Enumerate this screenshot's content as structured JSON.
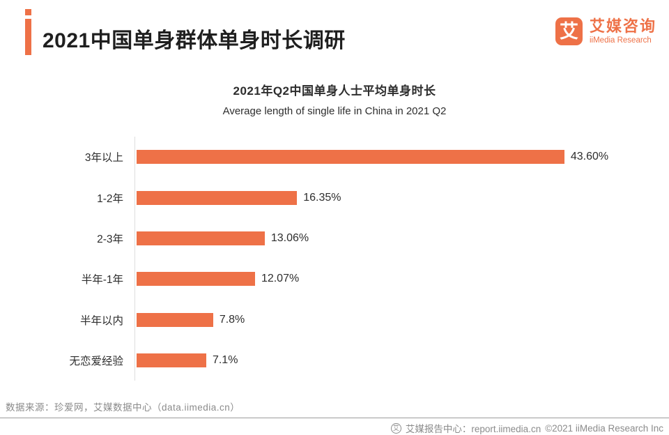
{
  "header": {
    "title": "2021中国单身群体单身时长调研",
    "logo": {
      "glyph": "艾",
      "name_cn": "艾媒咨询",
      "name_en": "iiMedia Research"
    }
  },
  "chart_data": {
    "type": "bar",
    "orientation": "horizontal",
    "title": "2021年Q2中国单身人士平均单身时长",
    "subtitle": "Average length of single life in China in 2021 Q2",
    "categories": [
      "3年以上",
      "1-2年",
      "2-3年",
      "半年-1年",
      "半年以内",
      "无恋爱经验"
    ],
    "values": [
      43.6,
      16.35,
      13.06,
      12.07,
      7.8,
      7.1
    ],
    "value_labels": [
      "43.60%",
      "16.35%",
      "13.06%",
      "12.07%",
      "7.8%",
      "7.1%"
    ],
    "unit": "%",
    "xlim": [
      0,
      45
    ],
    "bar_color": "#EE7147",
    "grid": false,
    "legend": "none"
  },
  "footer": {
    "source": "数据来源：珍爱网，艾媒数据中心（data.iimedia.cn）",
    "report_center": "艾媒报告中心：report.iimedia.cn",
    "copyright": "©2021  iiMedia Research  Inc",
    "icon_glyph": "艾"
  },
  "colors": {
    "accent": "#EE7147",
    "text_dark": "#1f1f1f",
    "text_gray": "#8b8b8b",
    "axis_line": "#dddddd"
  }
}
